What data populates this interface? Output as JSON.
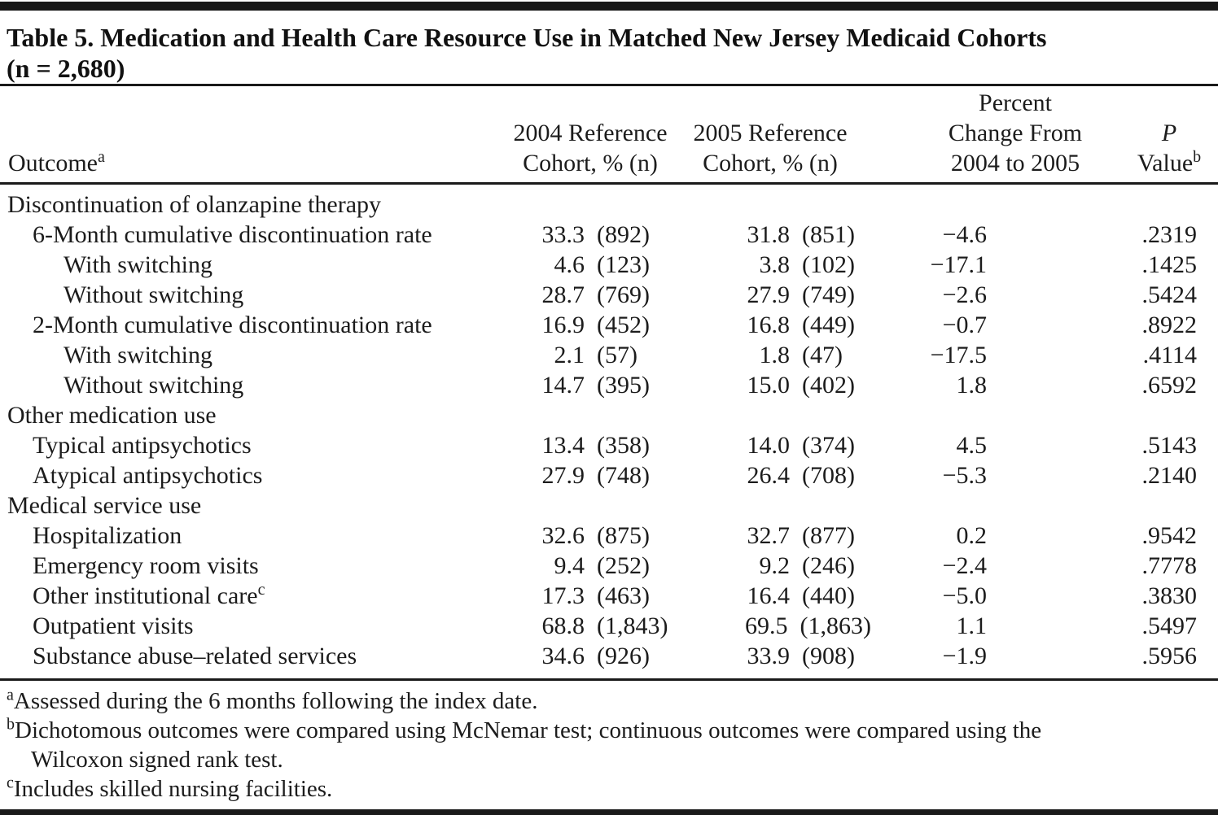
{
  "title": {
    "line1": "Table 5. Medication and Health Care Resource Use in Matched New Jersey Medicaid Cohorts",
    "line2": "(n = 2,680)"
  },
  "header": {
    "outcome": "Outcome",
    "outcome_sup": "a",
    "col2004_line1": "2004 Reference",
    "col2004_line2": "Cohort, % (n)",
    "col2005_line1": "2005 Reference",
    "col2005_line2": "Cohort, % (n)",
    "chg_line1": "Percent",
    "chg_line2": "Change From",
    "chg_line3": "2004 to 2005",
    "p_line1": "P",
    "p_line2": "Value",
    "p_sup": "b"
  },
  "rows": [
    {
      "type": "section",
      "label": "Discontinuation of olanzapine therapy"
    },
    {
      "type": "data",
      "level": 1,
      "label": "6-Month cumulative discontinuation rate",
      "pct2004": "33.3",
      "n2004": "(892)",
      "pct2005": "31.8",
      "n2005": "(851)",
      "chg": "−4.6",
      "p": ".2319"
    },
    {
      "type": "data",
      "level": 2,
      "label": "With switching",
      "pct2004": "4.6",
      "n2004": "(123)",
      "pct2005": "3.8",
      "n2005": "(102)",
      "chg": "−17.1",
      "p": ".1425"
    },
    {
      "type": "data",
      "level": 2,
      "label": "Without switching",
      "pct2004": "28.7",
      "n2004": "(769)",
      "pct2005": "27.9",
      "n2005": "(749)",
      "chg": "−2.6",
      "p": ".5424"
    },
    {
      "type": "data",
      "level": 1,
      "label": "2-Month cumulative discontinuation rate",
      "pct2004": "16.9",
      "n2004": "(452)",
      "pct2005": "16.8",
      "n2005": "(449)",
      "chg": "−0.7",
      "p": ".8922"
    },
    {
      "type": "data",
      "level": 2,
      "label": "With switching",
      "pct2004": "2.1",
      "n2004": "(57)",
      "pct2005": "1.8",
      "n2005": "(47)",
      "chg": "−17.5",
      "p": ".4114"
    },
    {
      "type": "data",
      "level": 2,
      "label": "Without switching",
      "pct2004": "14.7",
      "n2004": "(395)",
      "pct2005": "15.0",
      "n2005": "(402)",
      "chg": "1.8",
      "p": ".6592"
    },
    {
      "type": "section",
      "label": "Other medication use"
    },
    {
      "type": "data",
      "level": 1,
      "label": "Typical antipsychotics",
      "pct2004": "13.4",
      "n2004": "(358)",
      "pct2005": "14.0",
      "n2005": "(374)",
      "chg": "4.5",
      "p": ".5143"
    },
    {
      "type": "data",
      "level": 1,
      "label": "Atypical antipsychotics",
      "pct2004": "27.9",
      "n2004": "(748)",
      "pct2005": "26.4",
      "n2005": "(708)",
      "chg": "−5.3",
      "p": ".2140"
    },
    {
      "type": "section",
      "label": "Medical service use"
    },
    {
      "type": "data",
      "level": 1,
      "label": "Hospitalization",
      "pct2004": "32.6",
      "n2004": "(875)",
      "pct2005": "32.7",
      "n2005": "(877)",
      "chg": "0.2",
      "p": ".9542"
    },
    {
      "type": "data",
      "level": 1,
      "label": "Emergency room visits",
      "pct2004": "9.4",
      "n2004": "(252)",
      "pct2005": "9.2",
      "n2005": "(246)",
      "chg": "−2.4",
      "p": ".7778"
    },
    {
      "type": "data",
      "level": 1,
      "label": "Other institutional care",
      "label_sup": "c",
      "pct2004": "17.3",
      "n2004": "(463)",
      "pct2005": "16.4",
      "n2005": "(440)",
      "chg": "−5.0",
      "p": ".3830"
    },
    {
      "type": "data",
      "level": 1,
      "label": "Outpatient visits",
      "pct2004": "68.8",
      "n2004": "(1,843)",
      "pct2005": "69.5",
      "n2005": "(1,863)",
      "chg": "1.1",
      "p": ".5497"
    },
    {
      "type": "data",
      "level": 1,
      "label": "Substance abuse–related services",
      "pct2004": "34.6",
      "n2004": "(926)",
      "pct2005": "33.9",
      "n2005": "(908)",
      "chg": "−1.9",
      "p": ".5956"
    }
  ],
  "footnotes": [
    {
      "marker": "a",
      "text": "Assessed during the 6 months following the index date."
    },
    {
      "marker": "b",
      "text": "Dichotomous outcomes were compared using McNemar test; continuous outcomes were compared using the",
      "text_cont": "Wilcoxon signed rank test."
    },
    {
      "marker": "c",
      "text": "Includes skilled nursing facilities."
    }
  ],
  "colors": {
    "text": "#1c1c1c",
    "rule": "#1a1a1a",
    "background": "#ffffff"
  }
}
